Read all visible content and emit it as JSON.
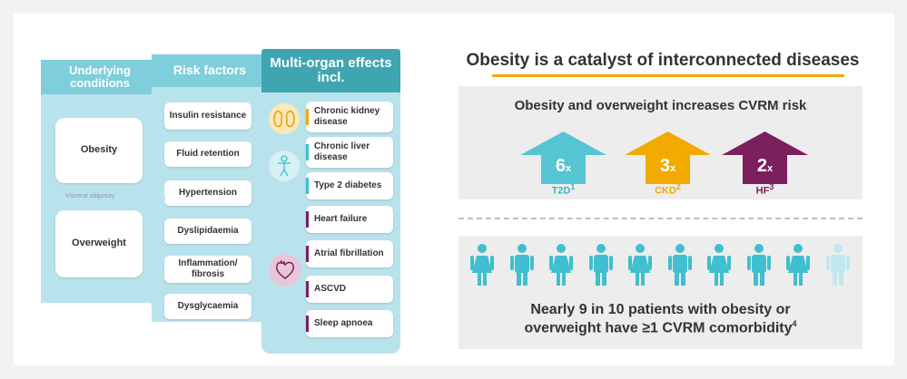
{
  "left": {
    "col1_header": "Underlying conditions",
    "col2_header": "Risk factors",
    "col3_header": "Multi-organ effects incl.",
    "conditions": [
      "Obesity",
      "Overweight"
    ],
    "visceral_label": "Visceral adiposity",
    "risk_factors": [
      "Insulin resistance",
      "Fluid retention",
      "Hypertension",
      "Dyslipidaemia",
      "Inflammation/ fibrosis",
      "Dysglycaemia"
    ],
    "effects": [
      {
        "label": "Chronic kidney disease",
        "color": "#f2a900"
      },
      {
        "label": "Chronic liver disease",
        "color": "#3fbfcf"
      },
      {
        "label": "Type 2 diabetes",
        "color": "#3fbfcf"
      },
      {
        "label": "Heart failure",
        "color": "#7b1f5e"
      },
      {
        "label": "Atrial fibrillation",
        "color": "#7b1f5e"
      },
      {
        "label": "ASCVD",
        "color": "#7b1f5e"
      },
      {
        "label": "Sleep apnoea",
        "color": "#7b1f5e"
      }
    ],
    "icons": [
      "kidney-icon",
      "body-icon",
      "heart-icon"
    ]
  },
  "right": {
    "title": "Obesity is a catalyst of interconnected diseases",
    "subtitle": "Obesity and overweight increases CVRM risk",
    "arrows": [
      {
        "value": "6",
        "unit": "x",
        "label": "T2D",
        "ref": "1",
        "color": "#56c5d3",
        "label_color": "#3fb3c4"
      },
      {
        "value": "3",
        "unit": "x",
        "label": "CKD",
        "ref": "2",
        "color": "#f2a900",
        "label_color": "#f2a900"
      },
      {
        "value": "2",
        "unit": "x",
        "label": "HF",
        "ref": "3",
        "color": "#7b1f5e",
        "label_color": "#7b1f5e"
      }
    ],
    "patients_total": 10,
    "patients_highlighted": 9,
    "person_color": "#3fbfcf",
    "person_color_light": "#bfe8ee",
    "bottom_line1": "Nearly 9 in 10 patients with obesity or",
    "bottom_line2": "overweight have ≥1 CVRM comorbidity",
    "bottom_ref": "4"
  }
}
